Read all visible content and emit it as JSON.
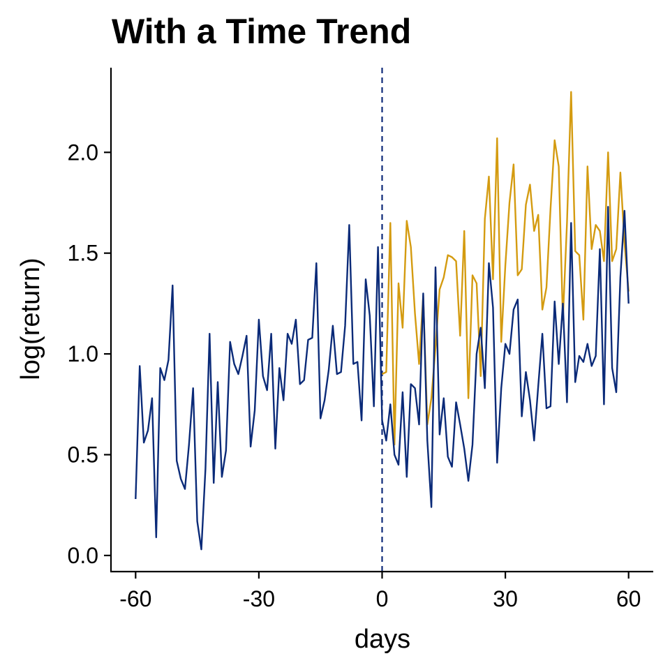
{
  "chart_data": {
    "type": "line",
    "title": "With a Time Trend",
    "xlabel": "days",
    "ylabel": "log(return)",
    "xlim": [
      -66,
      66
    ],
    "ylim": [
      -0.08,
      2.42
    ],
    "x_ticks": [
      -60,
      -30,
      0,
      30,
      60
    ],
    "x_tick_labels": [
      "-60",
      "-30",
      "0",
      "30",
      "60"
    ],
    "y_ticks": [
      0.0,
      0.5,
      1.0,
      1.5,
      2.0
    ],
    "y_tick_labels": [
      "0.0",
      "0.5",
      "1.0",
      "1.5",
      "2.0"
    ],
    "grid": false,
    "vline": {
      "x": 0,
      "style": "dashed",
      "color": "#0e2a78"
    },
    "series": [
      {
        "color": "#d49b10",
        "x": [
          0,
          1,
          2,
          3,
          4,
          5,
          6,
          7,
          8,
          9,
          10,
          11,
          12,
          13,
          14,
          15,
          16,
          17,
          18,
          19,
          20,
          21,
          22,
          23,
          24,
          25,
          26,
          27,
          28,
          29,
          30,
          31,
          32,
          33,
          34,
          35,
          36,
          37,
          38,
          39,
          40,
          41,
          42,
          43,
          44,
          45,
          46,
          47,
          48,
          49,
          50,
          51,
          52,
          53,
          54,
          55,
          56,
          57,
          58,
          59,
          60
        ],
        "y": [
          0.9,
          0.91,
          1.65,
          0.55,
          1.35,
          1.13,
          1.66,
          1.53,
          1.2,
          0.95,
          1.29,
          0.65,
          0.78,
          1.03,
          1.32,
          1.38,
          1.49,
          1.48,
          1.46,
          1.09,
          1.61,
          0.78,
          1.39,
          1.35,
          0.89,
          1.67,
          1.88,
          1.37,
          2.07,
          1.06,
          1.44,
          1.75,
          1.94,
          1.39,
          1.42,
          1.74,
          1.84,
          1.61,
          1.69,
          1.22,
          1.33,
          1.72,
          2.06,
          1.93,
          1.17,
          1.65,
          2.3,
          1.51,
          1.49,
          1.17,
          1.93,
          1.52,
          1.64,
          1.61,
          1.46,
          2.0,
          1.46,
          1.52,
          1.9,
          1.55,
          1.31
        ]
      },
      {
        "color": "#0a2a78",
        "x": [
          -60,
          -59,
          -58,
          -57,
          -56,
          -55,
          -54,
          -53,
          -52,
          -51,
          -50,
          -49,
          -48,
          -47,
          -46,
          -45,
          -44,
          -43,
          -42,
          -41,
          -40,
          -39,
          -38,
          -37,
          -36,
          -35,
          -34,
          -33,
          -32,
          -31,
          -30,
          -29,
          -28,
          -27,
          -26,
          -25,
          -24,
          -23,
          -22,
          -21,
          -20,
          -19,
          -18,
          -17,
          -16,
          -15,
          -14,
          -13,
          -12,
          -11,
          -10,
          -9,
          -8,
          -7,
          -6,
          -5,
          -4,
          -3,
          -2,
          -1,
          0,
          1,
          2,
          3,
          4,
          5,
          6,
          7,
          8,
          9,
          10,
          11,
          12,
          13,
          14,
          15,
          16,
          17,
          18,
          19,
          20,
          21,
          22,
          23,
          24,
          25,
          26,
          27,
          28,
          29,
          30,
          31,
          32,
          33,
          34,
          35,
          36,
          37,
          38,
          39,
          40,
          41,
          42,
          43,
          44,
          45,
          46,
          47,
          48,
          49,
          50,
          51,
          52,
          53,
          54,
          55,
          56,
          57,
          58,
          59,
          60
        ],
        "y": [
          0.28,
          0.94,
          0.56,
          0.62,
          0.78,
          0.09,
          0.93,
          0.87,
          0.97,
          1.34,
          0.47,
          0.38,
          0.33,
          0.55,
          0.83,
          0.17,
          0.03,
          0.43,
          1.1,
          0.36,
          0.86,
          0.39,
          0.52,
          1.06,
          0.95,
          0.9,
          0.99,
          1.09,
          0.54,
          0.72,
          1.17,
          0.89,
          0.82,
          1.1,
          0.53,
          0.93,
          0.77,
          1.1,
          1.05,
          1.17,
          0.85,
          0.87,
          1.07,
          1.08,
          1.45,
          0.68,
          0.77,
          0.92,
          1.14,
          0.9,
          0.91,
          1.14,
          1.64,
          0.95,
          0.96,
          0.67,
          1.37,
          1.19,
          0.74,
          1.53,
          0.67,
          0.57,
          0.75,
          0.5,
          0.45,
          0.81,
          0.39,
          0.85,
          0.83,
          0.65,
          1.3,
          0.57,
          0.24,
          1.43,
          0.6,
          0.78,
          0.49,
          0.44,
          0.76,
          0.65,
          0.53,
          0.37,
          0.55,
          1.0,
          1.13,
          0.83,
          1.45,
          1.23,
          0.46,
          0.83,
          1.05,
          1.0,
          1.22,
          1.27,
          0.69,
          0.91,
          0.77,
          0.57,
          0.84,
          1.1,
          0.73,
          0.74,
          1.26,
          0.95,
          1.25,
          0.76,
          1.65,
          0.86,
          0.99,
          0.96,
          1.05,
          0.94,
          0.99,
          1.52,
          0.75,
          1.73,
          0.93,
          0.81,
          1.38,
          1.71,
          1.25
        ]
      }
    ]
  }
}
